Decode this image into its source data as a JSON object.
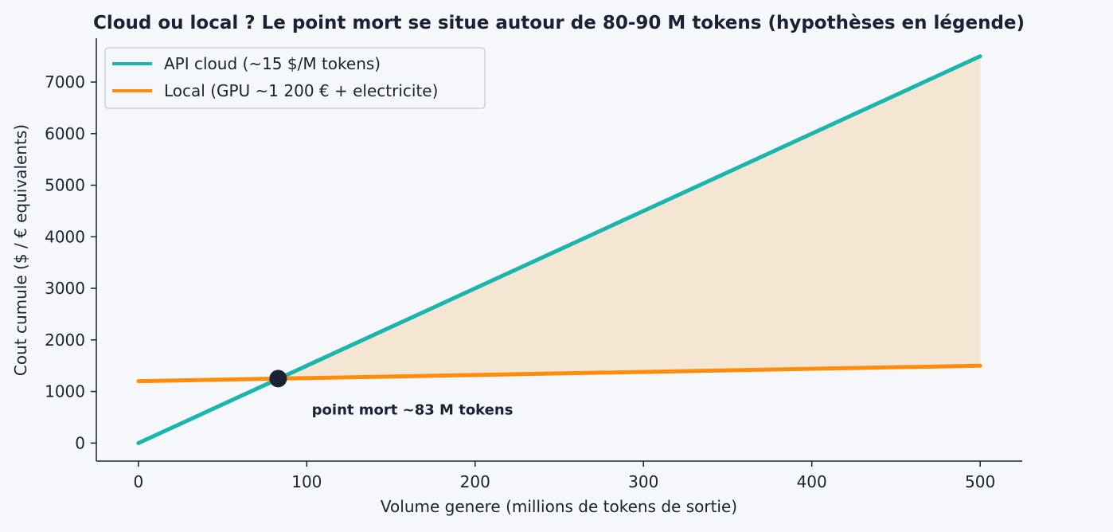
{
  "chart_data": {
    "type": "line",
    "title": "Cloud ou local ? Le point mort se situe autour de 80-90 M tokens (hypothèses en légende)",
    "xlabel": "Volume genere (millions de tokens de sortie)",
    "ylabel": "Cout cumule ($ / € equivalents)",
    "xlim": [
      -25,
      525
    ],
    "ylim": [
      -350,
      7850
    ],
    "x_ticks": [
      0,
      100,
      200,
      300,
      400,
      500
    ],
    "y_ticks": [
      0,
      1000,
      2000,
      3000,
      4000,
      5000,
      6000,
      7000
    ],
    "grid": false,
    "legend_position": "top-left",
    "series": [
      {
        "name": "API cloud (~15 $/M tokens)",
        "color": "#1ab5ac",
        "x": [
          0,
          500
        ],
        "y": [
          0,
          7500
        ]
      },
      {
        "name": "Local (GPU ~1 200 € + electricite)",
        "color": "#ff8c0a",
        "x": [
          0,
          500
        ],
        "y": [
          1200,
          1500
        ]
      }
    ],
    "fill_between": {
      "series": [
        0,
        1
      ],
      "from_x": 83,
      "to_x": 500,
      "color": "#f5e6d3"
    },
    "break_even": {
      "x": 83,
      "y": 1250,
      "color": "#1a2233"
    },
    "annotation": {
      "text": "point mort ~83 M tokens",
      "x": 103,
      "y": 550
    }
  }
}
